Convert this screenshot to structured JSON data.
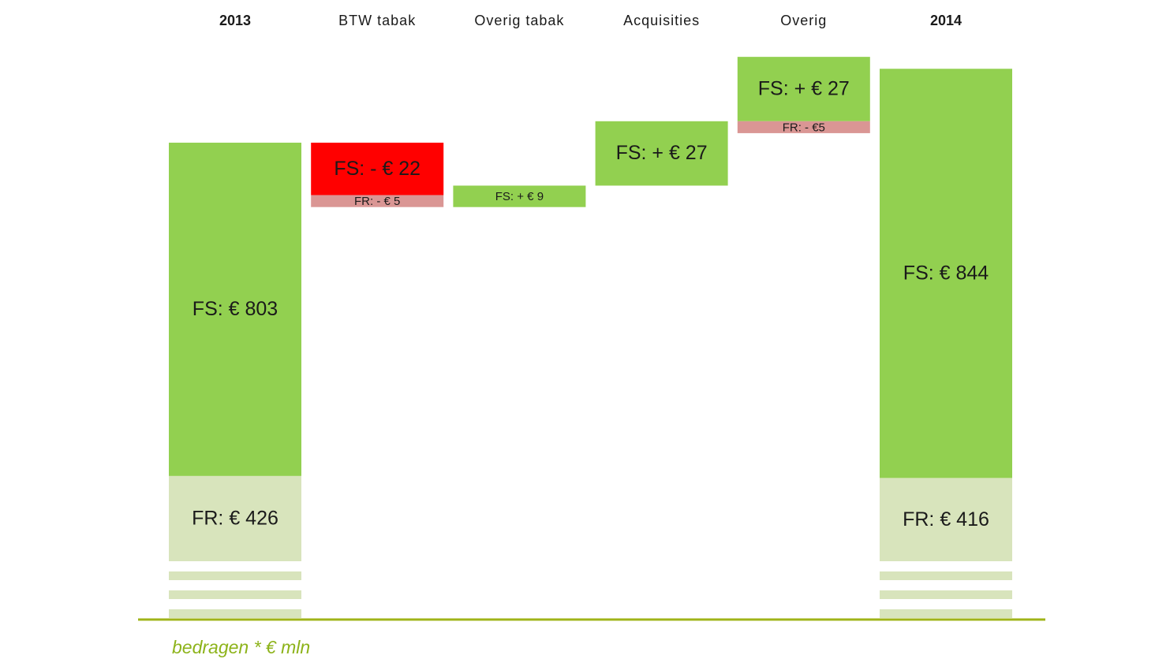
{
  "chart_data": {
    "type": "waterfall",
    "categories": [
      "2013",
      "BTW tabak",
      "Overig tabak",
      "Acquisities",
      "Overig",
      "2014"
    ],
    "measure": [
      "total",
      "relative",
      "relative",
      "relative",
      "relative",
      "total"
    ],
    "series": [
      {
        "name": "FS",
        "values": [
          803,
          -22,
          9,
          27,
          27,
          844
        ],
        "value_labels": [
          "FS: € 803",
          "FS: - € 22",
          "FS: + € 9",
          "FS: + € 27",
          "FS: + € 27",
          "FS: € 844"
        ],
        "colors": [
          "#92d050",
          "#ff0000",
          "#92d050",
          "#92d050",
          "#92d050",
          "#92d050"
        ]
      },
      {
        "name": "FR",
        "values": [
          426,
          -5,
          null,
          null,
          -5,
          416
        ],
        "value_labels": [
          "FR: € 426",
          "FR: - € 5",
          null,
          null,
          "FR: - €5",
          "FR: € 416"
        ],
        "colors": [
          "#d8e4bc",
          "#da9694",
          null,
          null,
          "#da9694",
          "#d8e4bc"
        ]
      }
    ],
    "ylim": [
      1150,
      1270
    ],
    "note": "bedragen * € mln"
  }
}
